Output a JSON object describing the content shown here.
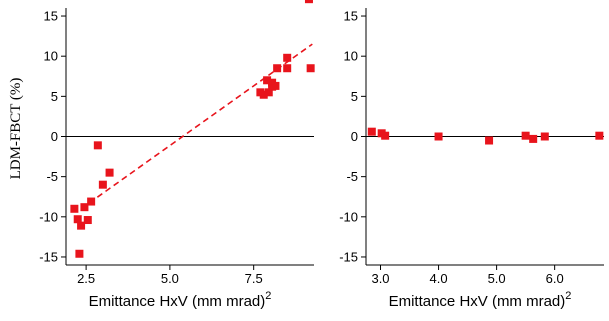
{
  "chart_data": [
    {
      "type": "scatter",
      "xlabel": "Emittance HxV (mm mrad)",
      "xlabel_sup": "2",
      "ylabel": "LDM-FBCT (%)",
      "xlim": [
        1.9,
        9.3
      ],
      "ylim": [
        -16,
        16
      ],
      "xticks": [
        2.5,
        5.0,
        7.5
      ],
      "xtick_labels": [
        "2.5",
        "5.0",
        "7.5"
      ],
      "yticks": [
        15,
        10,
        5,
        0,
        -5,
        -10,
        -15
      ],
      "ytick_labels": [
        "15",
        "10",
        "5",
        "0",
        "-5",
        "-10",
        "-15"
      ],
      "zero_line": true,
      "series": [
        {
          "color": "#e8141c",
          "marker": "square",
          "points": [
            [
              2.15,
              -9.0
            ],
            [
              2.25,
              -10.3
            ],
            [
              2.3,
              -14.6
            ],
            [
              2.35,
              -11.1
            ],
            [
              2.45,
              -8.8
            ],
            [
              2.55,
              -10.4
            ],
            [
              2.65,
              -8.1
            ],
            [
              2.85,
              -1.1
            ],
            [
              3.0,
              -6.0
            ],
            [
              3.2,
              -4.5
            ],
            [
              7.7,
              5.5
            ],
            [
              7.8,
              5.2
            ],
            [
              7.9,
              7.0
            ],
            [
              7.95,
              5.5
            ],
            [
              8.05,
              6.7
            ],
            [
              8.05,
              6.2
            ],
            [
              8.15,
              6.3
            ],
            [
              8.2,
              8.5
            ],
            [
              8.5,
              8.5
            ],
            [
              8.5,
              9.8
            ],
            [
              9.15,
              17.1
            ],
            [
              9.2,
              8.5
            ]
          ]
        }
      ],
      "fit_line": {
        "style": "dashed",
        "color": "#e8141c",
        "from": [
          2.35,
          -9.0
        ],
        "to": [
          9.25,
          11.5
        ]
      }
    },
    {
      "type": "scatter",
      "xlabel": "Emittance HxV (mm mrad)",
      "xlabel_sup": "2",
      "ylabel": "",
      "xlim": [
        2.75,
        6.85
      ],
      "ylim": [
        -16,
        16
      ],
      "xticks": [
        3.0,
        4.0,
        5.0,
        6.0
      ],
      "xtick_labels": [
        "3.0",
        "4.0",
        "5.0",
        "6.0"
      ],
      "yticks": [
        15,
        10,
        5,
        0,
        -5,
        -10,
        -15
      ],
      "ytick_labels": [
        "15",
        "10",
        "5",
        "0",
        "-5",
        "-10",
        "-15"
      ],
      "zero_line": true,
      "series": [
        {
          "color": "#e8141c",
          "marker": "square",
          "points": [
            [
              2.85,
              0.6
            ],
            [
              3.02,
              0.4
            ],
            [
              3.08,
              0.1
            ],
            [
              4.0,
              0.0
            ],
            [
              4.87,
              -0.5
            ],
            [
              5.5,
              0.1
            ],
            [
              5.63,
              -0.3
            ],
            [
              5.83,
              0.0
            ],
            [
              6.77,
              0.1
            ]
          ]
        }
      ]
    }
  ]
}
